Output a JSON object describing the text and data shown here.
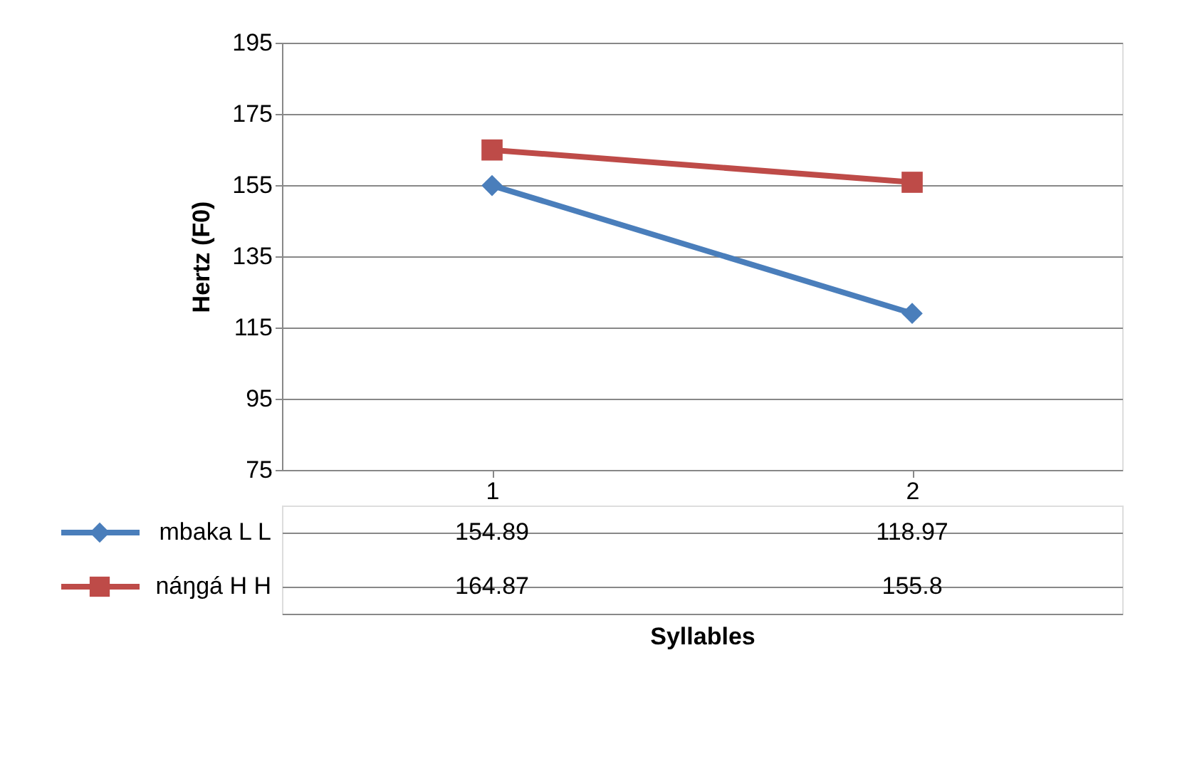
{
  "chart_data": {
    "type": "line",
    "xlabel": "Syllables",
    "ylabel": "Hertz (F0)",
    "categories": [
      "1",
      "2"
    ],
    "series": [
      {
        "name": "mbaka L L",
        "color": "#4a7ebb",
        "values": [
          154.89,
          118.97
        ],
        "marker": "diamond"
      },
      {
        "name": "náŋgá H H",
        "color": "#be4b48",
        "values": [
          164.87,
          155.8
        ],
        "marker": "square"
      }
    ],
    "ylim": [
      75,
      195
    ],
    "yticks": [
      75,
      95,
      115,
      135,
      155,
      175,
      195
    ],
    "grid": "y",
    "legend": "bottom left",
    "data_labels": true,
    "line_style": "solid"
  }
}
